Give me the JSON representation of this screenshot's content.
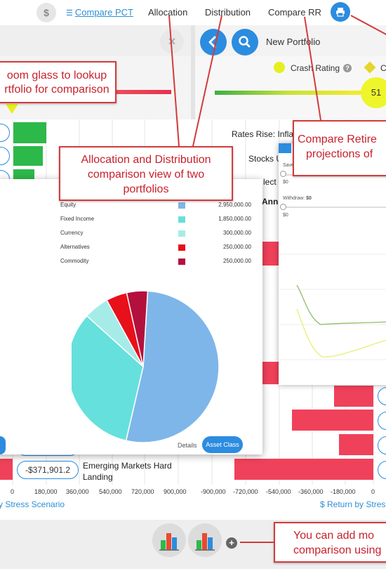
{
  "nav": {
    "compare_pct": "Compare PCT",
    "allocation": "Allocation",
    "distribution": "Distribution",
    "compare_rr": "Compare RR"
  },
  "right_panel": {
    "title": "New Portfolio",
    "crash_rating_label": "Crash Rating",
    "score": "51",
    "partial_label": "C"
  },
  "background_labels": {
    "rates_rise": "Rates Rise: Inflat",
    "stocks": "Stocks U",
    "partial_lect": "lect",
    "partial_annu": "Annu",
    "scenario_value": "-$371,901.2",
    "scenario_name_line1": "Emerging Markets Hard",
    "scenario_name_line2": "Landing"
  },
  "left_axis": {
    "ticks": [
      "0",
      "180,000",
      "360,000",
      "540,000",
      "720,000",
      "900,000"
    ],
    "title": "y Stress Scenario"
  },
  "right_axis": {
    "ticks": [
      "-900,000",
      "-720,000",
      "-540,000",
      "-360,000",
      "-180,000",
      "0"
    ],
    "title": "$ Return by Stres"
  },
  "retirement": {
    "save_label": "Save",
    "save_value": "$0",
    "withdraw_label": "Withdraw:",
    "withdraw_value": "$0",
    "withdraw_value2": "$0"
  },
  "allocation": {
    "details_label": "Details",
    "asset_class_button": "Asset Class",
    "items": [
      {
        "name": "Equity",
        "value": "2,950,000.00",
        "amount": 2950000,
        "color": "#7eb6ea"
      },
      {
        "name": "Fixed Income",
        "value": "1,850,000.00",
        "amount": 1850000,
        "color": "#66e0dc"
      },
      {
        "name": "Currency",
        "value": "300,000.00",
        "amount": 300000,
        "color": "#a5ece8"
      },
      {
        "name": "Alternatives",
        "value": "250,000.00",
        "amount": 250000,
        "color": "#e8101a"
      },
      {
        "name": "Commodity",
        "value": "250,000.00",
        "amount": 250000,
        "color": "#b4103e"
      }
    ]
  },
  "callouts": {
    "lookup_line1": "oom glass to lookup",
    "lookup_line2": "rtfolio for comparison",
    "alloc_line1": "Allocation and Distribution",
    "alloc_line2": "comparison view of two",
    "alloc_line3": "portfolios",
    "retire_line1": "Compare Retire",
    "retire_line2": "projections of",
    "add_line1": "You can add mo",
    "add_line2": "comparison using"
  },
  "colors": {
    "accent": "#2b8ce0",
    "positive_bar": "#2db84a",
    "negative_bar": "#f0415a",
    "callout_red": "#d43b3b"
  }
}
